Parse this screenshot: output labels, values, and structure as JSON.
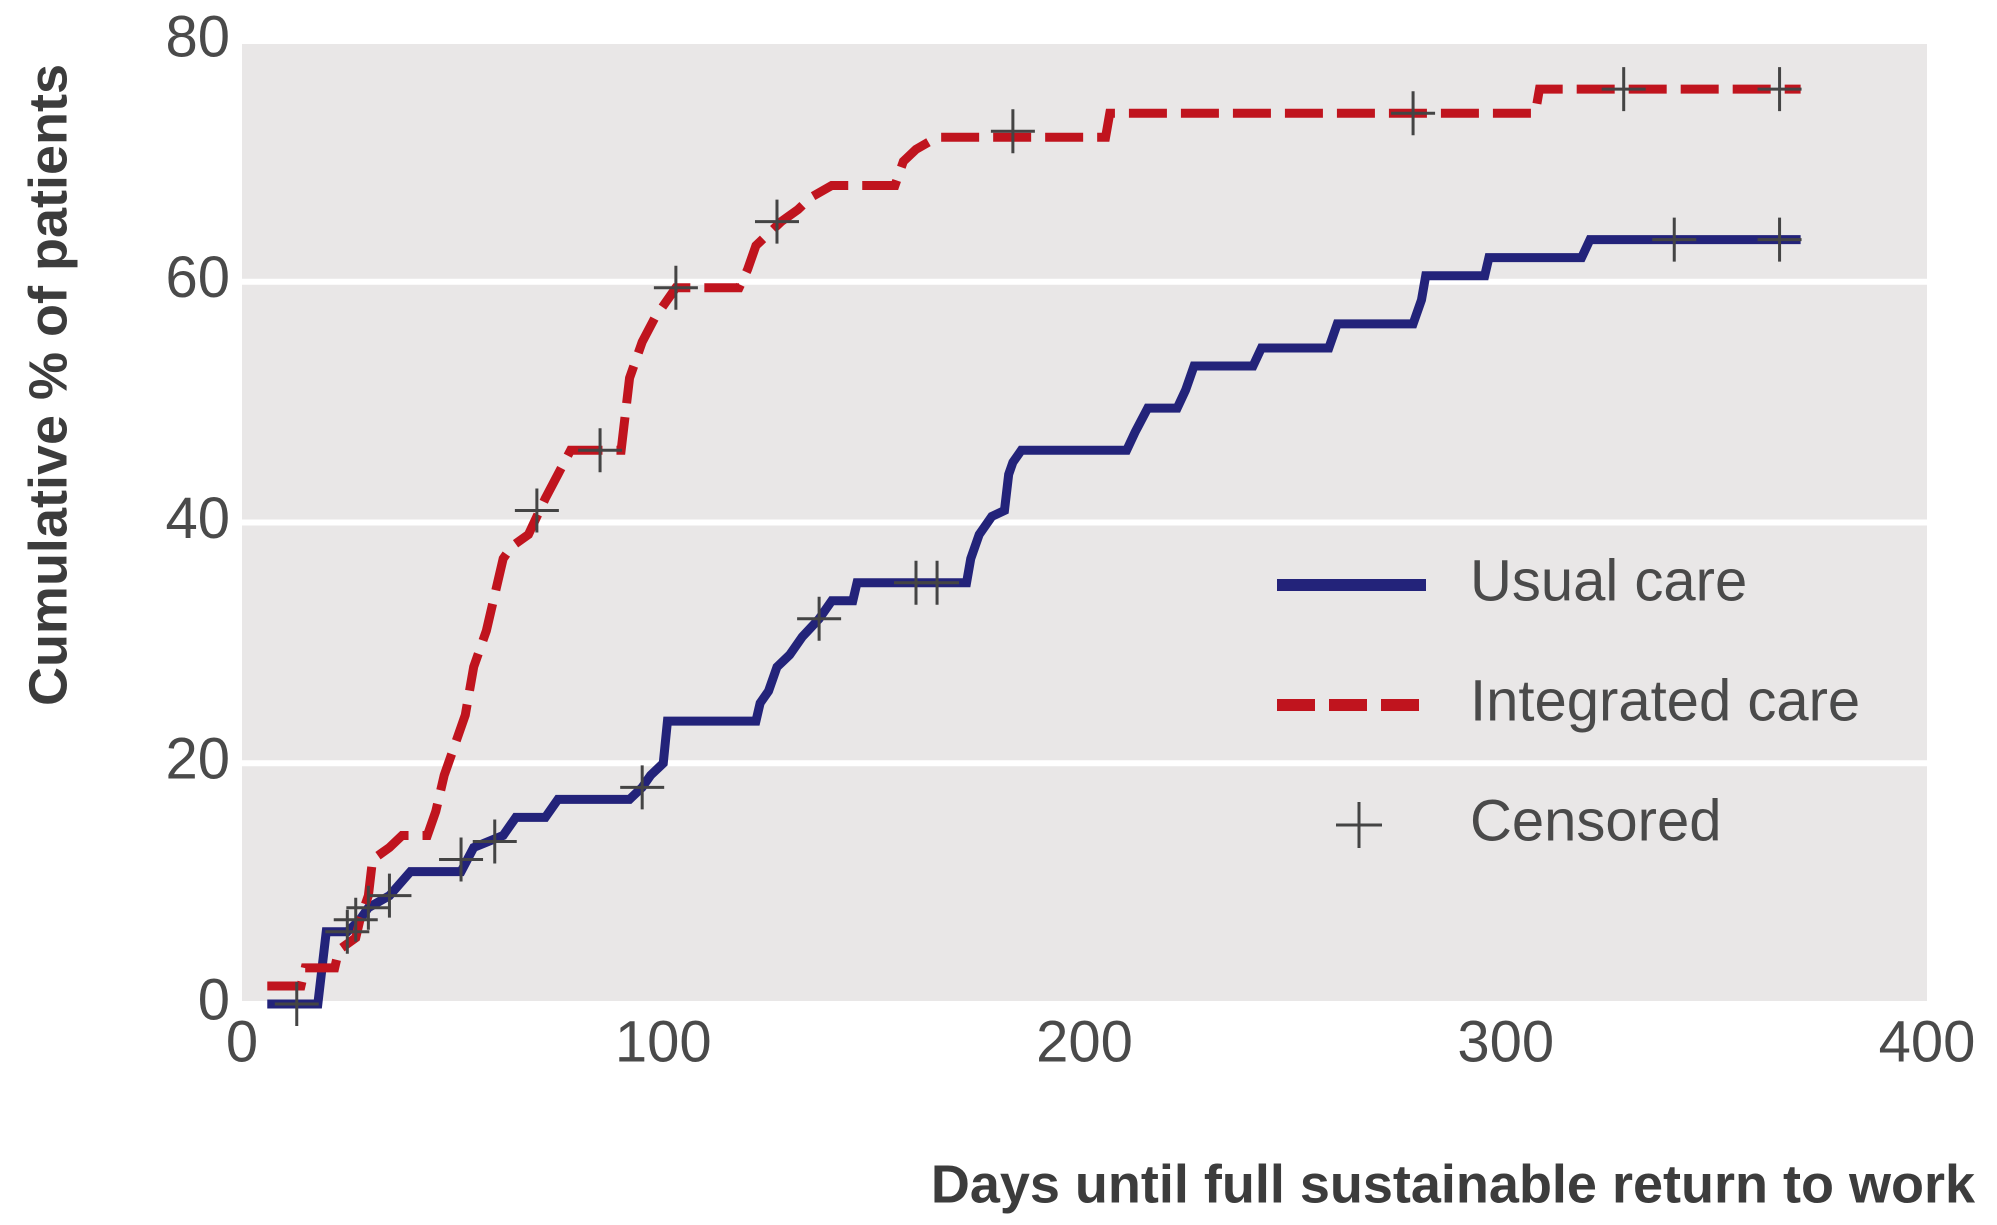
{
  "chart_data": {
    "type": "line",
    "xlabel": "Days until full sustainable return to work",
    "ylabel": "Cumulative % of patients",
    "xlim": [
      0,
      400
    ],
    "ylim": [
      0,
      80
    ],
    "xticks": [
      0,
      100,
      200,
      300,
      400
    ],
    "yticks": [
      0,
      20,
      40,
      60,
      80
    ],
    "grid": true,
    "legend": "right",
    "series": [
      {
        "name": "Usual care",
        "color": "#23237a",
        "linestyle": "solid",
        "x": [
          6,
          18,
          19,
          20,
          25,
          28,
          30,
          35,
          40,
          52,
          55,
          62,
          65,
          72,
          75,
          92,
          95,
          97,
          100,
          101,
          122,
          123,
          125,
          127,
          130,
          133,
          137,
          140,
          145,
          146,
          172,
          173,
          175,
          178,
          181,
          182,
          183,
          185,
          210,
          212,
          215,
          222,
          224,
          226,
          240,
          242,
          258,
          260,
          278,
          280,
          281,
          295,
          296,
          318,
          320,
          370
        ],
        "y": [
          0,
          0,
          3,
          6,
          6,
          7,
          8,
          9,
          11,
          11,
          13,
          14,
          15.5,
          15.5,
          17,
          17,
          18,
          19,
          20,
          23.5,
          23.5,
          25,
          26,
          28,
          29,
          30.5,
          32,
          33.5,
          33.5,
          35,
          35,
          37,
          39,
          40.5,
          41,
          44,
          45,
          46,
          46,
          47.5,
          49.5,
          49.5,
          51,
          53,
          53,
          54.5,
          54.5,
          56.5,
          56.5,
          58.5,
          60.5,
          60.5,
          62,
          62,
          63.5,
          63.5
        ]
      },
      {
        "name": "Integrated care",
        "color": "#c0141e",
        "linestyle": "dashed",
        "x": [
          6,
          14,
          15,
          22,
          23,
          27,
          28,
          30,
          31,
          35,
          38,
          44,
          46,
          48,
          50,
          53,
          55,
          58,
          60,
          62,
          64,
          68,
          70,
          72,
          75,
          78,
          90,
          91,
          92,
          95,
          98,
          100,
          103,
          118,
          120,
          122,
          125,
          128,
          132,
          135,
          140,
          155,
          157,
          160,
          165,
          205,
          206,
          307,
          308,
          370
        ],
        "y": [
          1.5,
          1.5,
          3,
          3,
          4.5,
          5.5,
          7,
          9,
          12,
          13,
          14,
          14,
          16,
          19,
          21,
          24,
          28,
          31,
          34,
          37,
          38,
          39,
          40.5,
          42,
          44,
          46,
          46,
          49,
          52,
          55,
          57,
          58,
          59.5,
          59.5,
          61,
          63,
          64,
          65,
          66,
          67,
          68,
          68,
          70,
          71,
          72,
          72,
          74,
          74,
          76,
          76
        ]
      },
      {
        "name": "Censored",
        "color": "#444444",
        "type": "scatter",
        "x": [
          13,
          25,
          27,
          30,
          35,
          52,
          60,
          95,
          137,
          160,
          165,
          340,
          365,
          70,
          85,
          103,
          127,
          183,
          278,
          328,
          365
        ],
        "y": [
          0,
          6,
          7,
          8,
          9,
          12,
          13.5,
          18,
          32,
          35,
          35,
          63.5,
          63.5,
          41,
          46,
          59.5,
          65,
          72.5,
          74,
          76,
          76
        ]
      }
    ]
  }
}
